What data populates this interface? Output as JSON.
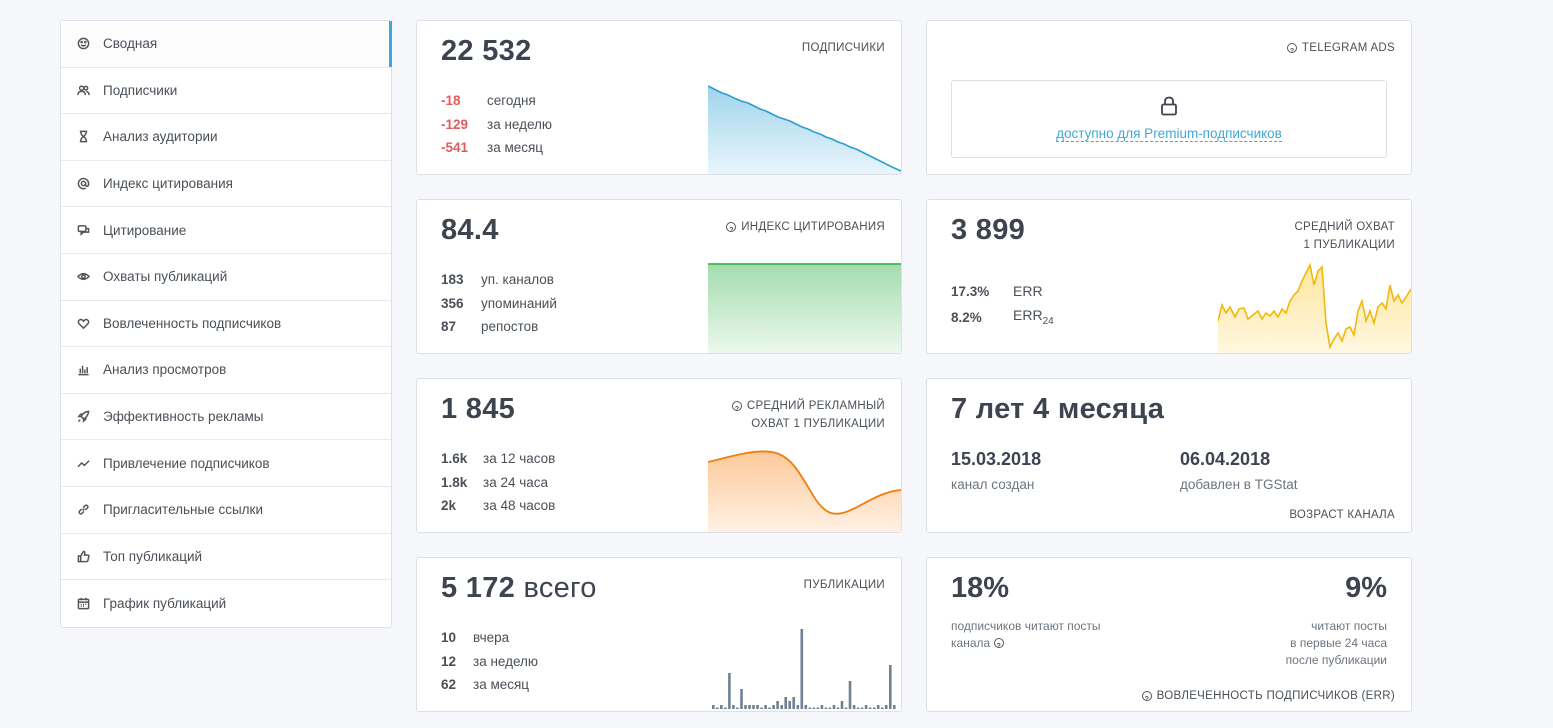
{
  "sidebar": {
    "items": [
      {
        "label": "Сводная",
        "icon": "dashboard-icon"
      },
      {
        "label": "Подписчики",
        "icon": "users-icon"
      },
      {
        "label": "Анализ аудитории",
        "icon": "hourglass-icon"
      },
      {
        "label": "Индекс цитирования",
        "icon": "at-icon"
      },
      {
        "label": "Цитирование",
        "icon": "quote-icon"
      },
      {
        "label": "Охваты публикаций",
        "icon": "eye-icon"
      },
      {
        "label": "Вовлеченность подписчиков",
        "icon": "heart-icon"
      },
      {
        "label": "Анализ просмотров",
        "icon": "bar-chart-icon"
      },
      {
        "label": "Эффективность рекламы",
        "icon": "rocket-icon"
      },
      {
        "label": "Привлечение подписчиков",
        "icon": "trend-icon"
      },
      {
        "label": "Пригласительные ссылки",
        "icon": "link-icon"
      },
      {
        "label": "Топ публикаций",
        "icon": "thumbs-up-icon"
      },
      {
        "label": "График публикаций",
        "icon": "calendar-icon"
      }
    ]
  },
  "subscribers": {
    "value": "22 532",
    "label": "ПОДПИСЧИКИ",
    "rows": [
      {
        "value": "-18",
        "label": "сегодня"
      },
      {
        "value": "-129",
        "label": "за неделю"
      },
      {
        "value": "-541",
        "label": "за месяц"
      }
    ],
    "color": "#3fa8d8"
  },
  "ads": {
    "label": "TELEGRAM ADS",
    "locked_text": "доступно для Premium-подписчиков"
  },
  "citation": {
    "value": "84.4",
    "label": "ИНДЕКС ЦИТИРОВАНИЯ",
    "rows": [
      {
        "value": "183",
        "label": "уп. каналов"
      },
      {
        "value": "356",
        "label": "упоминаний"
      },
      {
        "value": "87",
        "label": "репостов"
      }
    ],
    "color": "#4cba5a"
  },
  "reach": {
    "value": "3 899",
    "label_line1": "СРЕДНИЙ ОХВАТ",
    "label_line2": "1 ПУБЛИКАЦИИ",
    "rows": [
      {
        "value": "17.3%",
        "label": "ERR"
      },
      {
        "value": "8.2%",
        "label": "ERR",
        "sub": "24"
      }
    ],
    "color": "#f5c518"
  },
  "ad_reach": {
    "value": "1 845",
    "label_line1": "СРЕДНИЙ РЕКЛАМНЫЙ",
    "label_line2": "ОХВАТ 1 ПУБЛИКАЦИИ",
    "rows": [
      {
        "value": "1.6k",
        "label": "за 12 часов"
      },
      {
        "value": "1.8k",
        "label": "за 24 часа"
      },
      {
        "value": "2k",
        "label": "за 48 часов"
      }
    ],
    "color": "#f28b1c"
  },
  "age": {
    "value": "7 лет 4 месяца",
    "created_date": "15.03.2018",
    "created_label": "канал создан",
    "added_date": "06.04.2018",
    "added_label": "добавлен в TGStat",
    "label": "ВОЗРАСТ КАНАЛА"
  },
  "posts": {
    "value": "5 172",
    "suffix": "всего",
    "label": "ПУБЛИКАЦИИ",
    "rows": [
      {
        "value": "10",
        "label": "вчера"
      },
      {
        "value": "12",
        "label": "за неделю"
      },
      {
        "value": "62",
        "label": "за месяц"
      }
    ],
    "bars": [
      1,
      0,
      1,
      0,
      9,
      1,
      0,
      5,
      1,
      1,
      1,
      1,
      0,
      1,
      0,
      1,
      2,
      1,
      3,
      2,
      3,
      1,
      20,
      1,
      0,
      0,
      0,
      1,
      0,
      0,
      1,
      0,
      2,
      0,
      7,
      1,
      0,
      0,
      1,
      0,
      0,
      1,
      0,
      1,
      11,
      1
    ],
    "color": "#6f8294"
  },
  "engagement": {
    "left_value": "18%",
    "left_text_line1": "подписчиков читают посты",
    "left_text_line2": "канала",
    "right_value": "9%",
    "right_text_line1": "читают посты",
    "right_text_line2": "в первые 24 часа",
    "right_text_line3": "после публикации",
    "label": "ВОВЛЕЧЕННОСТЬ ПОДПИСЧИКОВ (ERR)"
  }
}
